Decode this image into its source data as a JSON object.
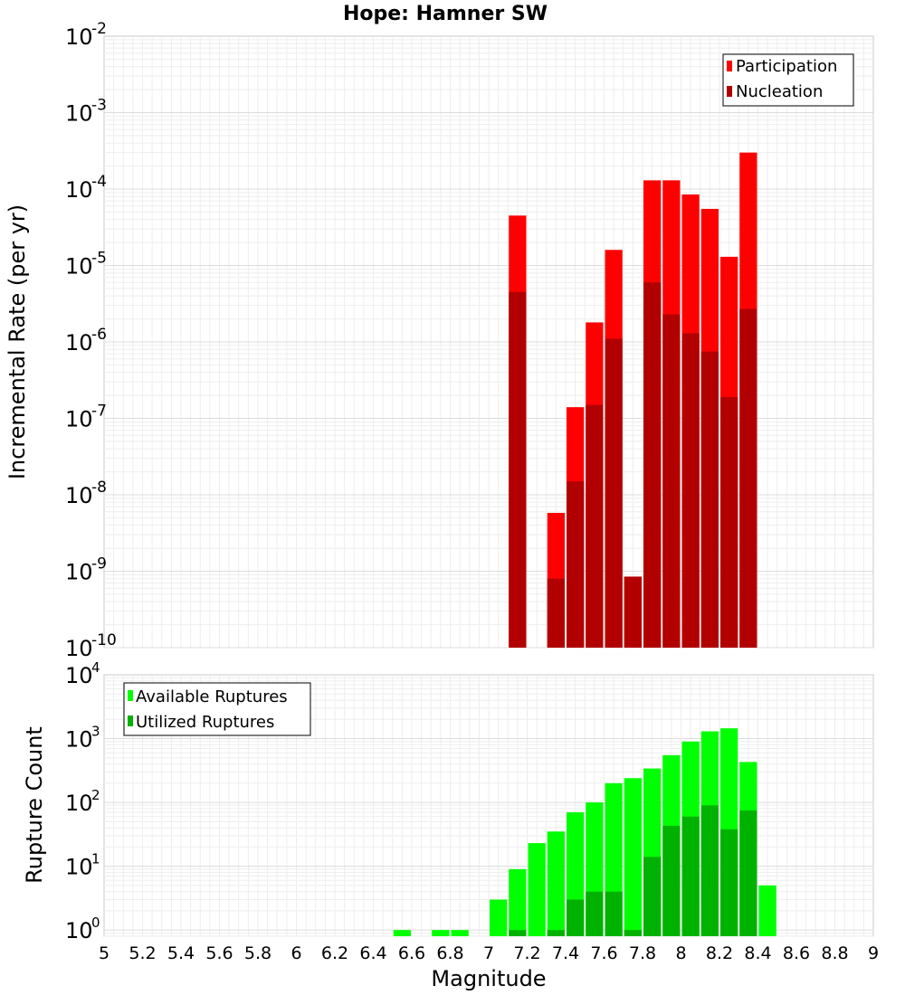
{
  "chart_data": [
    {
      "type": "bar",
      "title": "Hope: Hamner SW",
      "xlabel": "",
      "ylabel": "Incremental Rate (per yr)",
      "xlim": [
        5,
        9
      ],
      "ylim": [
        1e-10,
        0.01
      ],
      "yscale": "log",
      "grid": true,
      "legend_position": "top-right",
      "bin_width": 0.1,
      "y_ticks": [
        {
          "base": "10",
          "exp": "-2",
          "value": 0.01
        },
        {
          "base": "10",
          "exp": "-3",
          "value": 0.001
        },
        {
          "base": "10",
          "exp": "-4",
          "value": 0.0001
        },
        {
          "base": "10",
          "exp": "-5",
          "value": 1e-05
        },
        {
          "base": "10",
          "exp": "-6",
          "value": 1e-06
        },
        {
          "base": "10",
          "exp": "-7",
          "value": 1e-07
        },
        {
          "base": "10",
          "exp": "-8",
          "value": 1e-08
        },
        {
          "base": "10",
          "exp": "-9",
          "value": 1e-09
        },
        {
          "base": "10",
          "exp": "-10",
          "value": 1e-10
        }
      ],
      "series": [
        {
          "name": "Participation",
          "color": "#ff0000",
          "x": [
            7.15,
            7.35,
            7.45,
            7.55,
            7.65,
            7.75,
            7.85,
            7.95,
            8.05,
            8.15,
            8.25,
            8.35
          ],
          "values": [
            4.5e-05,
            5.8e-09,
            1.4e-07,
            1.8e-06,
            1.6e-05,
            8.5e-10,
            0.00013,
            0.00013,
            8.5e-05,
            5.5e-05,
            1.3e-05,
            0.0003
          ]
        },
        {
          "name": "Nucleation",
          "color": "#b20000",
          "x": [
            7.15,
            7.35,
            7.45,
            7.55,
            7.65,
            7.75,
            7.85,
            7.95,
            8.05,
            8.15,
            8.25,
            8.35
          ],
          "values": [
            4.5e-06,
            8e-10,
            1.5e-08,
            1.5e-07,
            1.1e-06,
            8.5e-10,
            6e-06,
            2.3e-06,
            1.3e-06,
            7.5e-07,
            1.9e-07,
            2.7e-06
          ]
        }
      ]
    },
    {
      "type": "bar",
      "title": "",
      "xlabel": "Magnitude",
      "ylabel": "Rupture Count",
      "xlim": [
        5,
        9
      ],
      "ylim": [
        0.8,
        10000.0
      ],
      "yscale": "log",
      "grid": true,
      "legend_position": "top-left",
      "bin_width": 0.1,
      "x_ticks": [
        "5",
        "5.2",
        "5.4",
        "5.6",
        "5.8",
        "6",
        "6.2",
        "6.4",
        "6.6",
        "6.8",
        "7",
        "7.2",
        "7.4",
        "7.6",
        "7.8",
        "8",
        "8.2",
        "8.4",
        "8.6",
        "8.8",
        "9"
      ],
      "y_ticks": [
        {
          "base": "10",
          "exp": "4",
          "value": 10000.0
        },
        {
          "base": "10",
          "exp": "3",
          "value": 1000.0
        },
        {
          "base": "10",
          "exp": "2",
          "value": 100.0
        },
        {
          "base": "10",
          "exp": "1",
          "value": 10
        },
        {
          "base": "10",
          "exp": "0",
          "value": 1
        }
      ],
      "series": [
        {
          "name": "Available Ruptures",
          "color": "#00ff00",
          "x": [
            6.55,
            6.75,
            6.85,
            7.05,
            7.15,
            7.25,
            7.35,
            7.45,
            7.55,
            7.65,
            7.75,
            7.85,
            7.95,
            8.05,
            8.15,
            8.25,
            8.35,
            8.45
          ],
          "values": [
            1,
            1,
            1,
            3,
            9,
            23,
            35,
            70,
            100,
            200,
            240,
            340,
            550,
            900,
            1300,
            1450,
            430,
            5
          ]
        },
        {
          "name": "Utilized Ruptures",
          "color": "#00b200",
          "x": [
            7.15,
            7.35,
            7.45,
            7.55,
            7.65,
            7.75,
            7.85,
            7.95,
            8.05,
            8.15,
            8.25,
            8.35
          ],
          "values": [
            1,
            1,
            3,
            4,
            4,
            1,
            14,
            43,
            60,
            90,
            38,
            75
          ]
        }
      ]
    }
  ]
}
